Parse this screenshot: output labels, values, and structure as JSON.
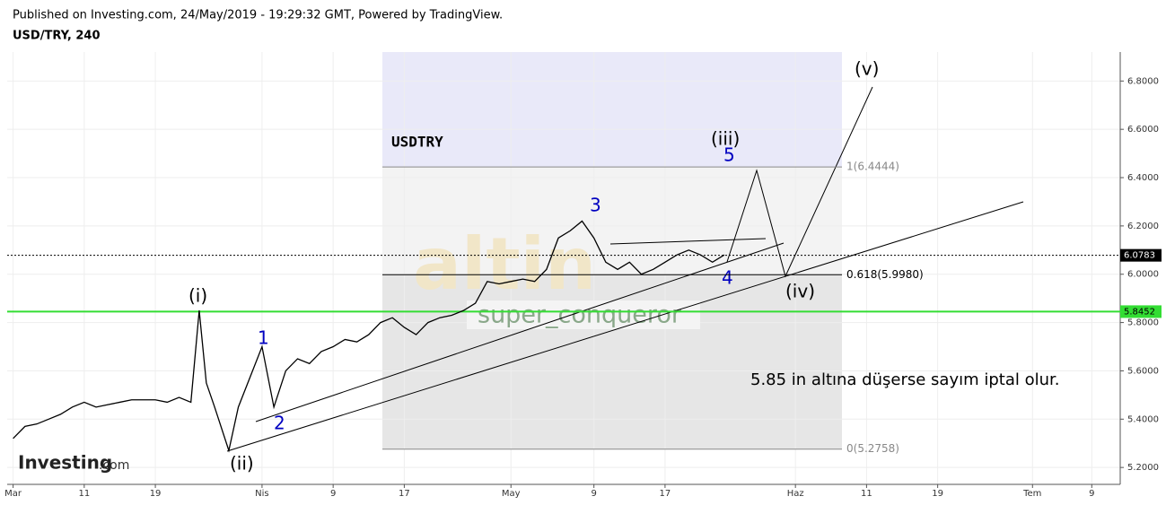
{
  "header": {
    "published": "Published on Investing.com, 24/May/2019 - 19:29:32 GMT, Powered by TradingView.",
    "symbol": "USD/TRY, 240"
  },
  "chart_data": {
    "type": "line",
    "color": "#000000",
    "x": [
      0,
      1,
      2,
      3,
      4,
      5,
      6,
      7,
      8,
      9,
      10,
      11,
      12,
      13,
      14,
      15,
      15.7,
      16.3,
      17,
      18.2,
      19,
      21,
      22,
      23,
      24,
      25,
      26,
      27,
      28,
      29,
      30,
      31,
      32,
      33,
      34,
      35,
      36,
      37,
      38,
      39,
      40,
      41,
      42,
      43,
      44,
      45,
      46,
      47,
      48,
      49,
      50,
      51,
      52,
      53,
      54,
      55,
      56,
      57,
      58,
      59,
      60
    ],
    "values": [
      5.32,
      5.37,
      5.38,
      5.4,
      5.42,
      5.45,
      5.47,
      5.45,
      5.46,
      5.47,
      5.48,
      5.48,
      5.48,
      5.47,
      5.49,
      5.47,
      5.85,
      5.55,
      5.45,
      5.27,
      5.45,
      5.7,
      5.45,
      5.6,
      5.65,
      5.63,
      5.68,
      5.7,
      5.73,
      5.72,
      5.75,
      5.8,
      5.82,
      5.78,
      5.75,
      5.8,
      5.82,
      5.83,
      5.85,
      5.88,
      5.97,
      5.96,
      5.97,
      5.98,
      5.97,
      6.02,
      6.15,
      6.18,
      6.22,
      6.15,
      6.05,
      6.02,
      6.05,
      6,
      6.02,
      6.05,
      6.08,
      6.1,
      6.08,
      6.05,
      6.08
    ],
    "xlim": [
      -0.5,
      93.4
    ],
    "ylim": [
      5.13,
      6.92
    ],
    "xticks": [
      {
        "value": 0,
        "label": "Mar"
      },
      {
        "value": 6,
        "label": "11"
      },
      {
        "value": 12,
        "label": "19"
      },
      {
        "value": 21,
        "label": "Nis"
      },
      {
        "value": 27,
        "label": "9"
      },
      {
        "value": 33,
        "label": "17"
      },
      {
        "value": 42,
        "label": "May"
      },
      {
        "value": 49,
        "label": "9"
      },
      {
        "value": 55,
        "label": "17"
      },
      {
        "value": 66,
        "label": "Haz"
      },
      {
        "value": 72,
        "label": "11"
      },
      {
        "value": 78,
        "label": "19"
      },
      {
        "value": 86,
        "label": "Tem"
      },
      {
        "value": 91,
        "label": "9"
      }
    ],
    "yticks": [
      {
        "value": 5.2,
        "label": "5.2000"
      },
      {
        "value": 5.4,
        "label": "5.4000"
      },
      {
        "value": 5.6,
        "label": "5.6000"
      },
      {
        "value": 5.8,
        "label": "5.8000"
      },
      {
        "value": 6,
        "label": "6.0000"
      },
      {
        "value": 6.2,
        "label": "6.2000"
      },
      {
        "value": 6.4,
        "label": "6.4000"
      },
      {
        "value": 6.6,
        "label": "6.6000"
      },
      {
        "value": 6.8,
        "label": "6.8000"
      }
    ],
    "grid": true,
    "price_lines": [
      {
        "value": 6.0783,
        "label": "6.0783",
        "color": "#000000",
        "style": "dotted"
      },
      {
        "value": 5.8452,
        "label": "5.8452",
        "color": "#33dd33",
        "style": "solid"
      }
    ],
    "fib_levels": [
      {
        "value": 6.4444,
        "label": "1(6.4444)"
      },
      {
        "value": 5.998,
        "label": "0.618(5.9980)"
      },
      {
        "value": 5.2758,
        "label": "0(5.2758)"
      }
    ],
    "wave_labels": [
      "(i)",
      "(ii)",
      "(iii)",
      "(iv)",
      "(v)",
      "1",
      "2",
      "3",
      "4",
      "5"
    ],
    "annotations": {
      "symbol": "USDTRY",
      "author": "super_conqueror",
      "note": "5.85 in altına düşerse sayım iptal olur.",
      "watermark": "altin",
      "logo": "Investing",
      "logo_suffix": ".com"
    }
  }
}
